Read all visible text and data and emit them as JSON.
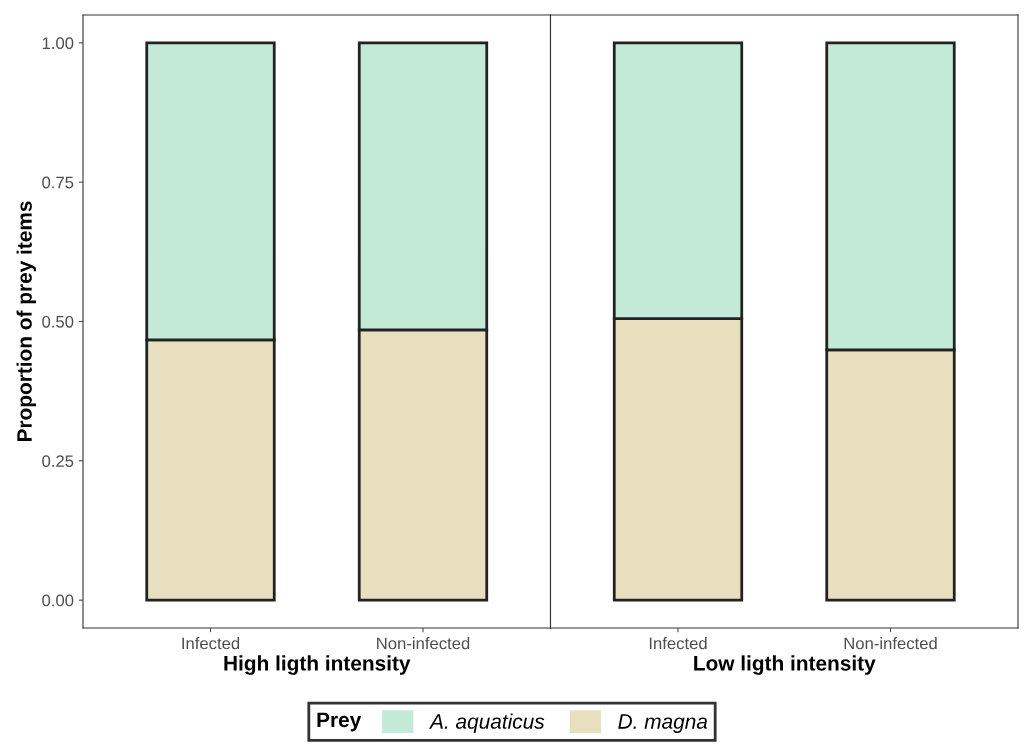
{
  "chart_data": [
    {
      "type": "bar",
      "stacked": true,
      "categories": [
        "Infected",
        "Non-infected"
      ],
      "xlabel": "High ligth intensity",
      "ylabel": "Proportion of prey items",
      "ylim": [
        -0.05,
        1.05
      ],
      "yticks": [
        {
          "value": 0,
          "label": "0.00"
        },
        {
          "value": 0.25,
          "label": "0.25"
        },
        {
          "value": 0.5,
          "label": "0.50"
        },
        {
          "value": 0.75,
          "label": "0.75"
        },
        {
          "value": 1,
          "label": "1.00"
        }
      ],
      "grid": false,
      "legend": "bottom",
      "legend_title": "Prey",
      "series": [
        {
          "name": "D. magna",
          "color": "#e8dfbf",
          "values": [
            0.467,
            0.485
          ]
        },
        {
          "name": "A. aquaticus",
          "color": "#c2ead6",
          "values": [
            0.533,
            0.515
          ]
        }
      ]
    },
    {
      "type": "bar",
      "stacked": true,
      "categories": [
        "Infected",
        "Non-infected"
      ],
      "xlabel": "Low ligth intensity",
      "ylim": [
        -0.05,
        1.05
      ],
      "grid": false,
      "tick_labels": "x",
      "series": [
        {
          "color": "#e8dfbf",
          "values": [
            0.505,
            0.449
          ]
        },
        {
          "color": "#c2ead6",
          "values": [
            0.495,
            0.551
          ]
        }
      ]
    }
  ]
}
